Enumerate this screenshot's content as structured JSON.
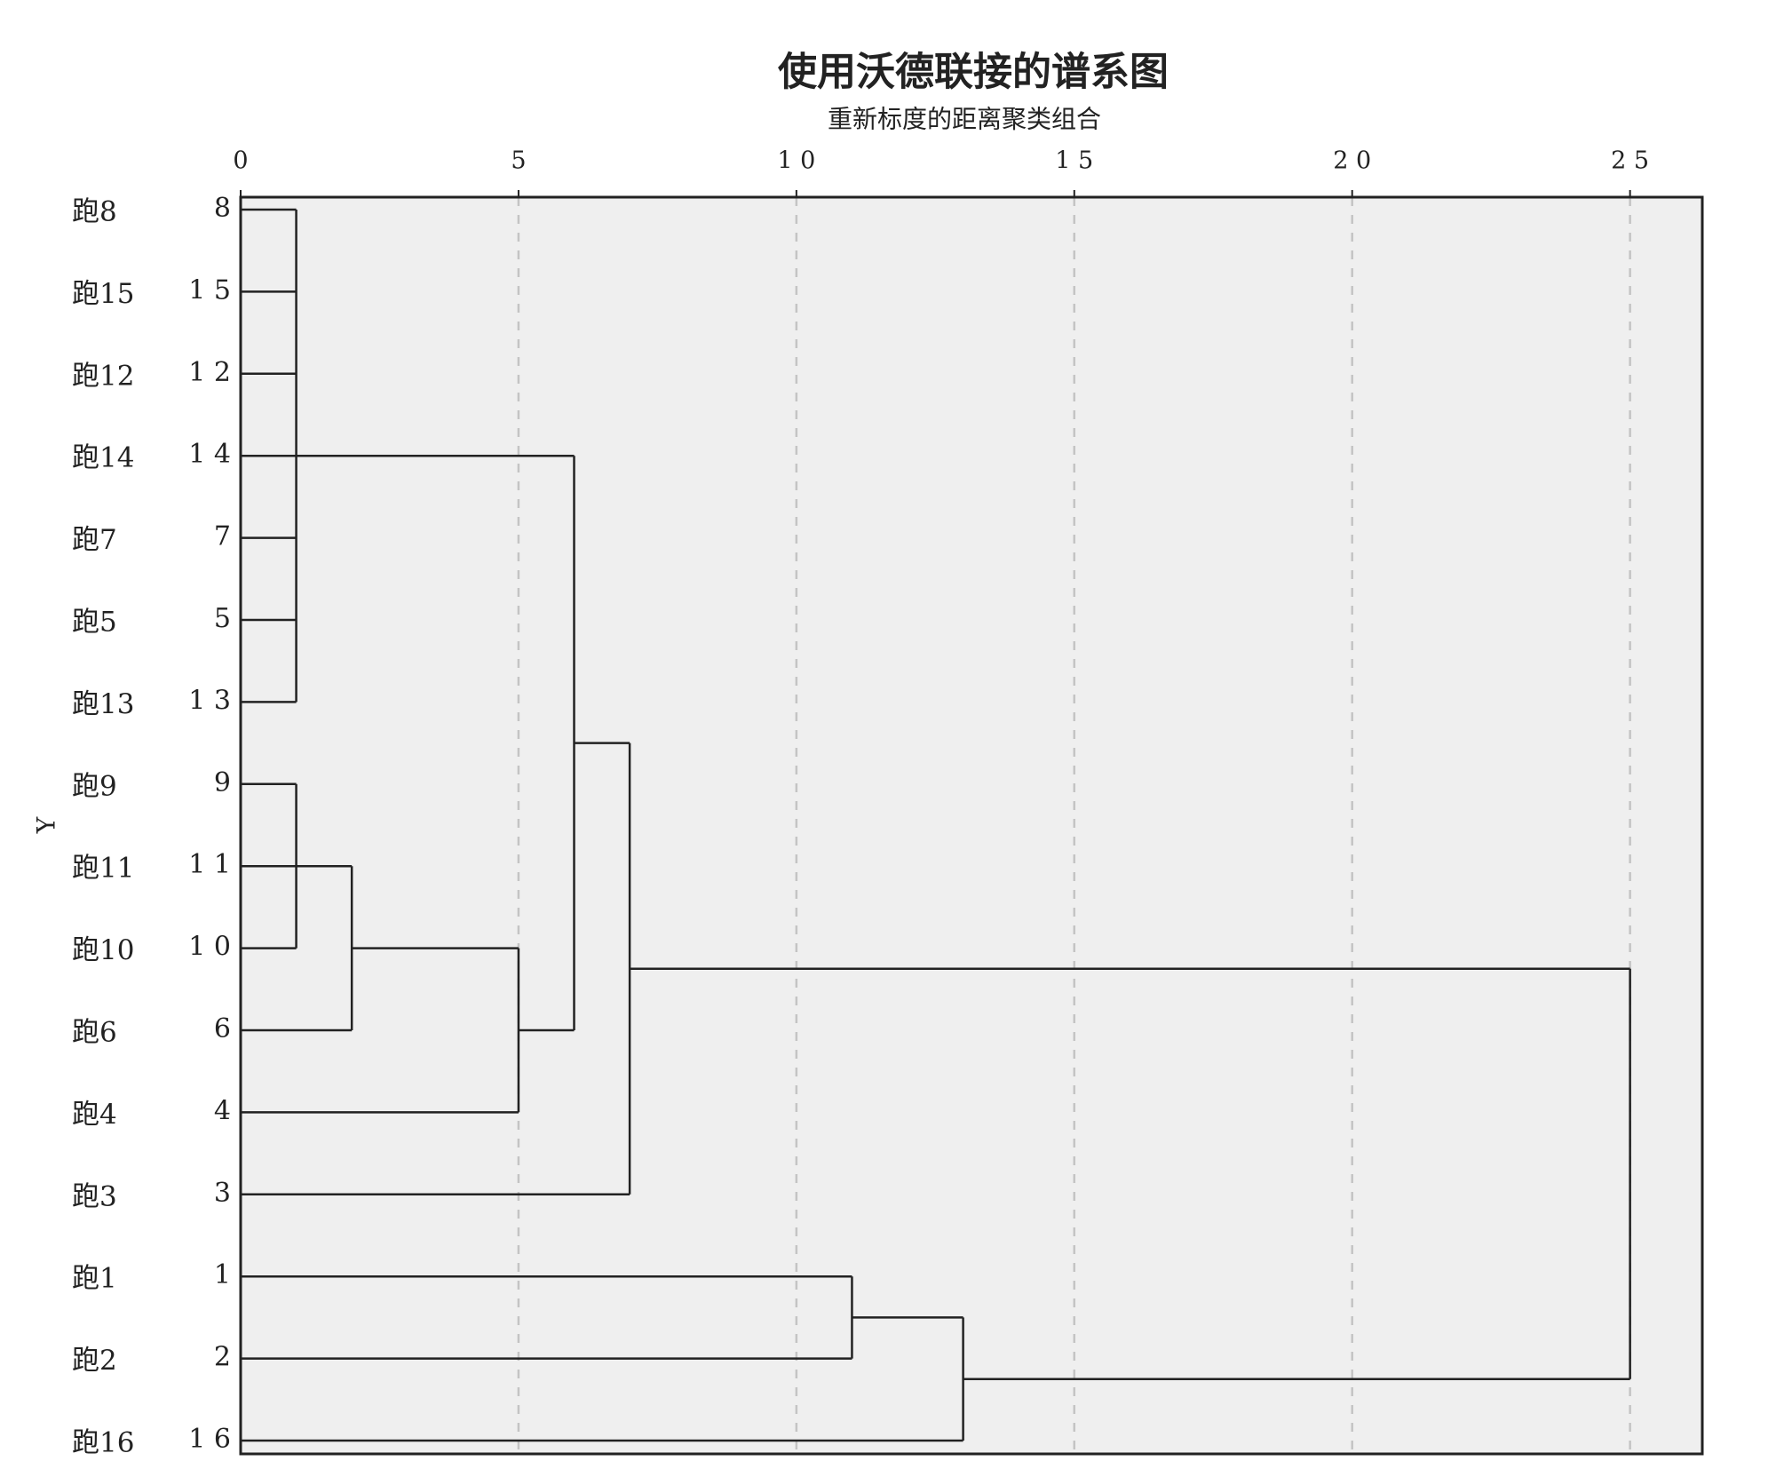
{
  "chart_data": {
    "type": "dendrogram",
    "title": "使用沃德联接的谱系图",
    "subtitle": "重新标度的距离聚类组合",
    "y_label": "Y",
    "leaves": [
      "跑8",
      "跑15",
      "跑12",
      "跑14",
      "跑7",
      "跑5",
      "跑13",
      "跑9",
      "跑11",
      "跑10",
      "跑6",
      "跑4",
      "跑3",
      "跑1",
      "跑2",
      "跑16"
    ],
    "case_numbers": [
      "8",
      "1 5",
      "1 2",
      "1 4",
      "7",
      "5",
      "1 3",
      "9",
      "1 1",
      "1 0",
      "6",
      "4",
      "3",
      "1",
      "2",
      "1 6"
    ],
    "merges": [
      {
        "children": [
          0,
          1,
          2,
          3,
          4,
          5,
          6
        ],
        "height": 1
      },
      {
        "children": [
          7,
          8,
          9
        ],
        "height": 1
      },
      {
        "children": [
          17,
          10
        ],
        "height": 2
      },
      {
        "children": [
          18,
          11
        ],
        "height": 5
      },
      {
        "children": [
          16,
          19
        ],
        "height": 6
      },
      {
        "children": [
          20,
          12
        ],
        "height": 7
      },
      {
        "children": [
          13,
          14
        ],
        "height": 11
      },
      {
        "children": [
          22,
          15
        ],
        "height": 13
      },
      {
        "children": [
          21,
          23
        ],
        "height": 25
      }
    ],
    "xlim": [
      0,
      26.3
    ],
    "xticks": [
      0,
      5,
      {
        "value": 10,
        "label": "1 0"
      },
      {
        "value": 15,
        "label": "1 5"
      },
      {
        "value": 20,
        "label": "2 0"
      },
      {
        "value": 25,
        "label": "2 5"
      }
    ],
    "grid": true,
    "background": "#efefef",
    "color": "#222222"
  }
}
